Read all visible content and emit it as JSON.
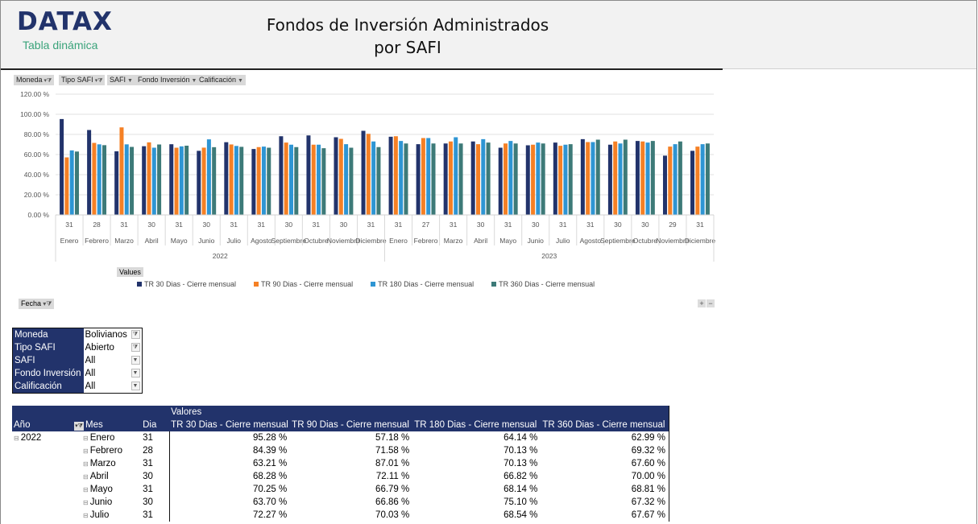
{
  "header": {
    "logo": "DATAX",
    "subtitle": "Tabla dinámica",
    "title_line1": "Fondos de Inversión Administrados",
    "title_line2": "por SAFI"
  },
  "chart_filters": [
    "Moneda",
    "Tipo SAFI",
    "SAFI",
    "Fondo Inversión",
    "Calificación"
  ],
  "chart_data": {
    "type": "bar",
    "ylim": [
      0,
      120
    ],
    "yticks": [
      "0.00 %",
      "20.00 %",
      "40.00 %",
      "60.00 %",
      "80.00 %",
      "100.00 %",
      "120.00 %"
    ],
    "grid": true,
    "legend_position": "bottom",
    "years": [
      {
        "label": "2022",
        "months": [
          "Enero",
          "Febrero",
          "Marzo",
          "Abril",
          "Mayo",
          "Junio",
          "Julio",
          "Agosto",
          "Septiembre",
          "Octubre",
          "Noviembre",
          "Diciembre"
        ],
        "days": [
          "31",
          "28",
          "31",
          "30",
          "31",
          "30",
          "31",
          "31",
          "30",
          "31",
          "30",
          "31"
        ]
      },
      {
        "label": "2023",
        "months": [
          "Enero",
          "Febrero",
          "Marzo",
          "Abril",
          "Mayo",
          "Junio",
          "Julio",
          "Agosto",
          "Septiembre",
          "Octubre",
          "Noviembre",
          "Diciembre"
        ],
        "days": [
          "31",
          "27",
          "31",
          "30",
          "31",
          "30",
          "31",
          "31",
          "30",
          "30",
          "29",
          "31"
        ]
      }
    ],
    "series": [
      {
        "name": "TR 30 Dias - Cierre mensual",
        "color": "#22336b",
        "values": [
          95.28,
          84.39,
          63.21,
          68.28,
          70.25,
          63.7,
          72.27,
          65.5,
          78.2,
          79.0,
          77.2,
          83.6,
          77.7,
          70.3,
          71.0,
          73.0,
          66.8,
          69.2,
          71.9,
          75.3,
          69.8,
          73.5,
          58.9,
          63.7
        ]
      },
      {
        "name": "TR 90 Dias - Cierre mensual",
        "color": "#f58025",
        "values": [
          57.18,
          71.58,
          87.01,
          72.11,
          66.79,
          66.86,
          70.03,
          67.4,
          71.9,
          69.8,
          75.6,
          80.6,
          78.2,
          76.4,
          73.0,
          70.3,
          71.0,
          69.8,
          68.7,
          72.4,
          73.0,
          73.0,
          67.9,
          67.9
        ]
      },
      {
        "name": "TR 180 Dias - Cierre mensual",
        "color": "#2e95d3",
        "values": [
          64.14,
          70.13,
          70.13,
          66.82,
          68.14,
          75.1,
          68.54,
          67.9,
          69.8,
          69.8,
          70.3,
          73.0,
          73.5,
          76.4,
          77.2,
          75.3,
          73.5,
          71.9,
          69.8,
          72.4,
          71.0,
          71.9,
          70.3,
          70.3
        ]
      },
      {
        "name": "TR 360 Dias - Cierre mensual",
        "color": "#3d7a78",
        "values": [
          62.99,
          69.32,
          67.6,
          70.0,
          68.81,
          67.32,
          67.67,
          66.8,
          67.4,
          66.3,
          66.8,
          67.4,
          71.0,
          71.0,
          71.0,
          71.9,
          71.0,
          71.0,
          70.3,
          74.8,
          74.8,
          73.5,
          73.0,
          71.0
        ]
      }
    ]
  },
  "chart_buttons": {
    "values": "Values",
    "fecha": "Fecha",
    "plus": "+",
    "minus": "−"
  },
  "filters": [
    {
      "label": "Moneda",
      "value": "Bolivianos",
      "filtered": true
    },
    {
      "label": "Tipo SAFI",
      "value": "Abierto",
      "filtered": true
    },
    {
      "label": "SAFI",
      "value": "All",
      "filtered": false
    },
    {
      "label": "Fondo Inversión",
      "value": "All",
      "filtered": false
    },
    {
      "label": "Calificación",
      "value": "All",
      "filtered": false
    }
  ],
  "table": {
    "valores": "Valores",
    "headers": [
      "Año",
      "Mes",
      "Dia",
      "TR 30 Dias - Cierre mensual",
      "TR 90 Dias - Cierre mensual",
      "TR 180 Dias - Cierre mensual",
      "TR 360 Dias - Cierre mensual"
    ],
    "rows": [
      {
        "year": "2022",
        "mes": "Enero",
        "dia": "31",
        "v": [
          "95.28 %",
          "57.18 %",
          "64.14 %",
          "62.99 %"
        ]
      },
      {
        "year": "",
        "mes": "Febrero",
        "dia": "28",
        "v": [
          "84.39 %",
          "71.58 %",
          "70.13 %",
          "69.32 %"
        ]
      },
      {
        "year": "",
        "mes": "Marzo",
        "dia": "31",
        "v": [
          "63.21 %",
          "87.01 %",
          "70.13 %",
          "67.60 %"
        ]
      },
      {
        "year": "",
        "mes": "Abril",
        "dia": "30",
        "v": [
          "68.28 %",
          "72.11 %",
          "66.82 %",
          "70.00 %"
        ]
      },
      {
        "year": "",
        "mes": "Mayo",
        "dia": "31",
        "v": [
          "70.25 %",
          "66.79 %",
          "68.14 %",
          "68.81 %"
        ]
      },
      {
        "year": "",
        "mes": "Junio",
        "dia": "30",
        "v": [
          "63.70 %",
          "66.86 %",
          "75.10 %",
          "67.32 %"
        ]
      },
      {
        "year": "",
        "mes": "Julio",
        "dia": "31",
        "v": [
          "72.27 %",
          "70.03 %",
          "68.54 %",
          "67.67 %"
        ]
      }
    ]
  }
}
